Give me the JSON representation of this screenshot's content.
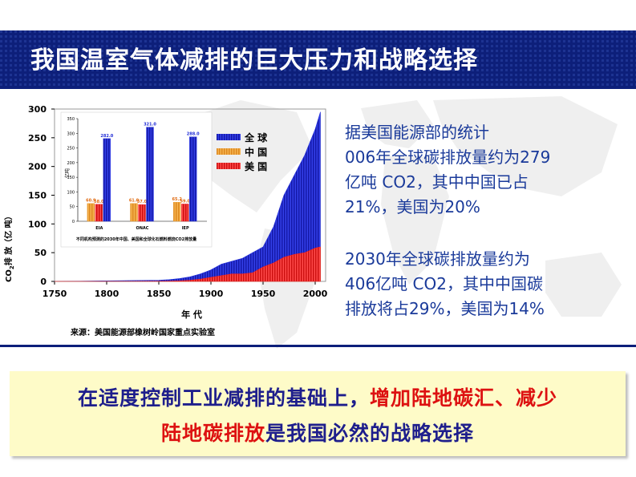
{
  "slide": {
    "title": "我国温室气体减排的巨大压力和战略选择",
    "paragraph1": {
      "line1": "据美国能源部的统计",
      "line2": "006年全球碳排放量约为279",
      "line3": "亿吨 CO2，其中中国已占",
      "line4": "21%，美国为20%"
    },
    "paragraph2": {
      "line1": "2030年全球碳排放量约为",
      "line2": "406亿吨 CO2，其中中国碳",
      "line3": "排放将占29%，美国为14%"
    },
    "conclusion": {
      "line1_part1": "在适度控制工业减排的基础上，",
      "line1_part2": "增加陆地碳汇、减少",
      "line2_part1": "陆地碳排放",
      "line2_part2": "是我国必然的战略选择"
    },
    "colors": {
      "title_bg": "#0d1f7a",
      "text_blue": "#1a3a9a",
      "highlight_red": "#dd1111",
      "conclusion_bg": "#fefbc8"
    }
  },
  "chart_data": [
    {
      "type": "area",
      "x": [
        1750,
        1775,
        1800,
        1825,
        1850,
        1860,
        1870,
        1880,
        1890,
        1900,
        1910,
        1920,
        1930,
        1940,
        1950,
        1960,
        1970,
        1980,
        1990,
        2000,
        2005
      ],
      "series": [
        {
          "name": "全 球",
          "color": "#1f2bd6",
          "values": [
            0.3,
            0.5,
            1,
            1.5,
            2,
            3,
            5,
            8,
            13,
            20,
            30,
            35,
            40,
            50,
            60,
            95,
            150,
            185,
            220,
            265,
            295
          ]
        },
        {
          "name": "中 国",
          "color": "#f0a030",
          "values": [
            0,
            0,
            0,
            0,
            0,
            0,
            0,
            0,
            0,
            0,
            0.1,
            0.2,
            0.3,
            0.5,
            1,
            3,
            6,
            12,
            22,
            35,
            60
          ]
        },
        {
          "name": "美 国",
          "color": "#ee2222",
          "values": [
            0,
            0,
            0,
            0,
            0.2,
            0.5,
            1,
            2,
            4,
            7,
            10,
            13,
            13,
            15,
            25,
            32,
            42,
            47,
            50,
            58,
            60
          ]
        }
      ],
      "xticks": [
        "1750",
        "1800",
        "1850",
        "1900",
        "1950",
        "2000"
      ],
      "yticks": [
        "0",
        "50",
        "100",
        "150",
        "200",
        "250",
        "300"
      ],
      "xlim": [
        1750,
        2010
      ],
      "ylim": [
        0,
        300
      ],
      "xlabel": "年 代",
      "ylabel_text": "排 放（亿 吨）",
      "ylabel_prefix": "CO",
      "ylabel_sub": "2",
      "source": "来源：美国能源部橡树岭国家重点实验室",
      "legend_position": "top-right",
      "grid": false
    },
    {
      "type": "bar",
      "categories": [
        "EIA",
        "ONAC",
        "IEP"
      ],
      "series": [
        {
          "color": "#f0a030",
          "values": [
            60.9,
            61.0,
            65.2
          ]
        },
        {
          "color": "#ee2222",
          "values": [
            58.0,
            57.0,
            59.0
          ]
        },
        {
          "color": "#1f2bd6",
          "values": [
            282.0,
            321.0,
            288.0
          ]
        }
      ],
      "value_labels": [
        [
          "60.9",
          "58.0",
          "282.0"
        ],
        [
          "61.0",
          "57.0",
          "321.0"
        ],
        [
          "65.2",
          "59.0",
          "288.0"
        ]
      ],
      "ylim": [
        0,
        350
      ],
      "yticks": [
        "0",
        "50",
        "100",
        "150",
        "200",
        "250",
        "300",
        "350"
      ],
      "ylabel": "亿吨",
      "caption": "不同机构预测的2030年中国、美国和全球化石燃料燃烧CO2排放量",
      "grid": false
    }
  ]
}
